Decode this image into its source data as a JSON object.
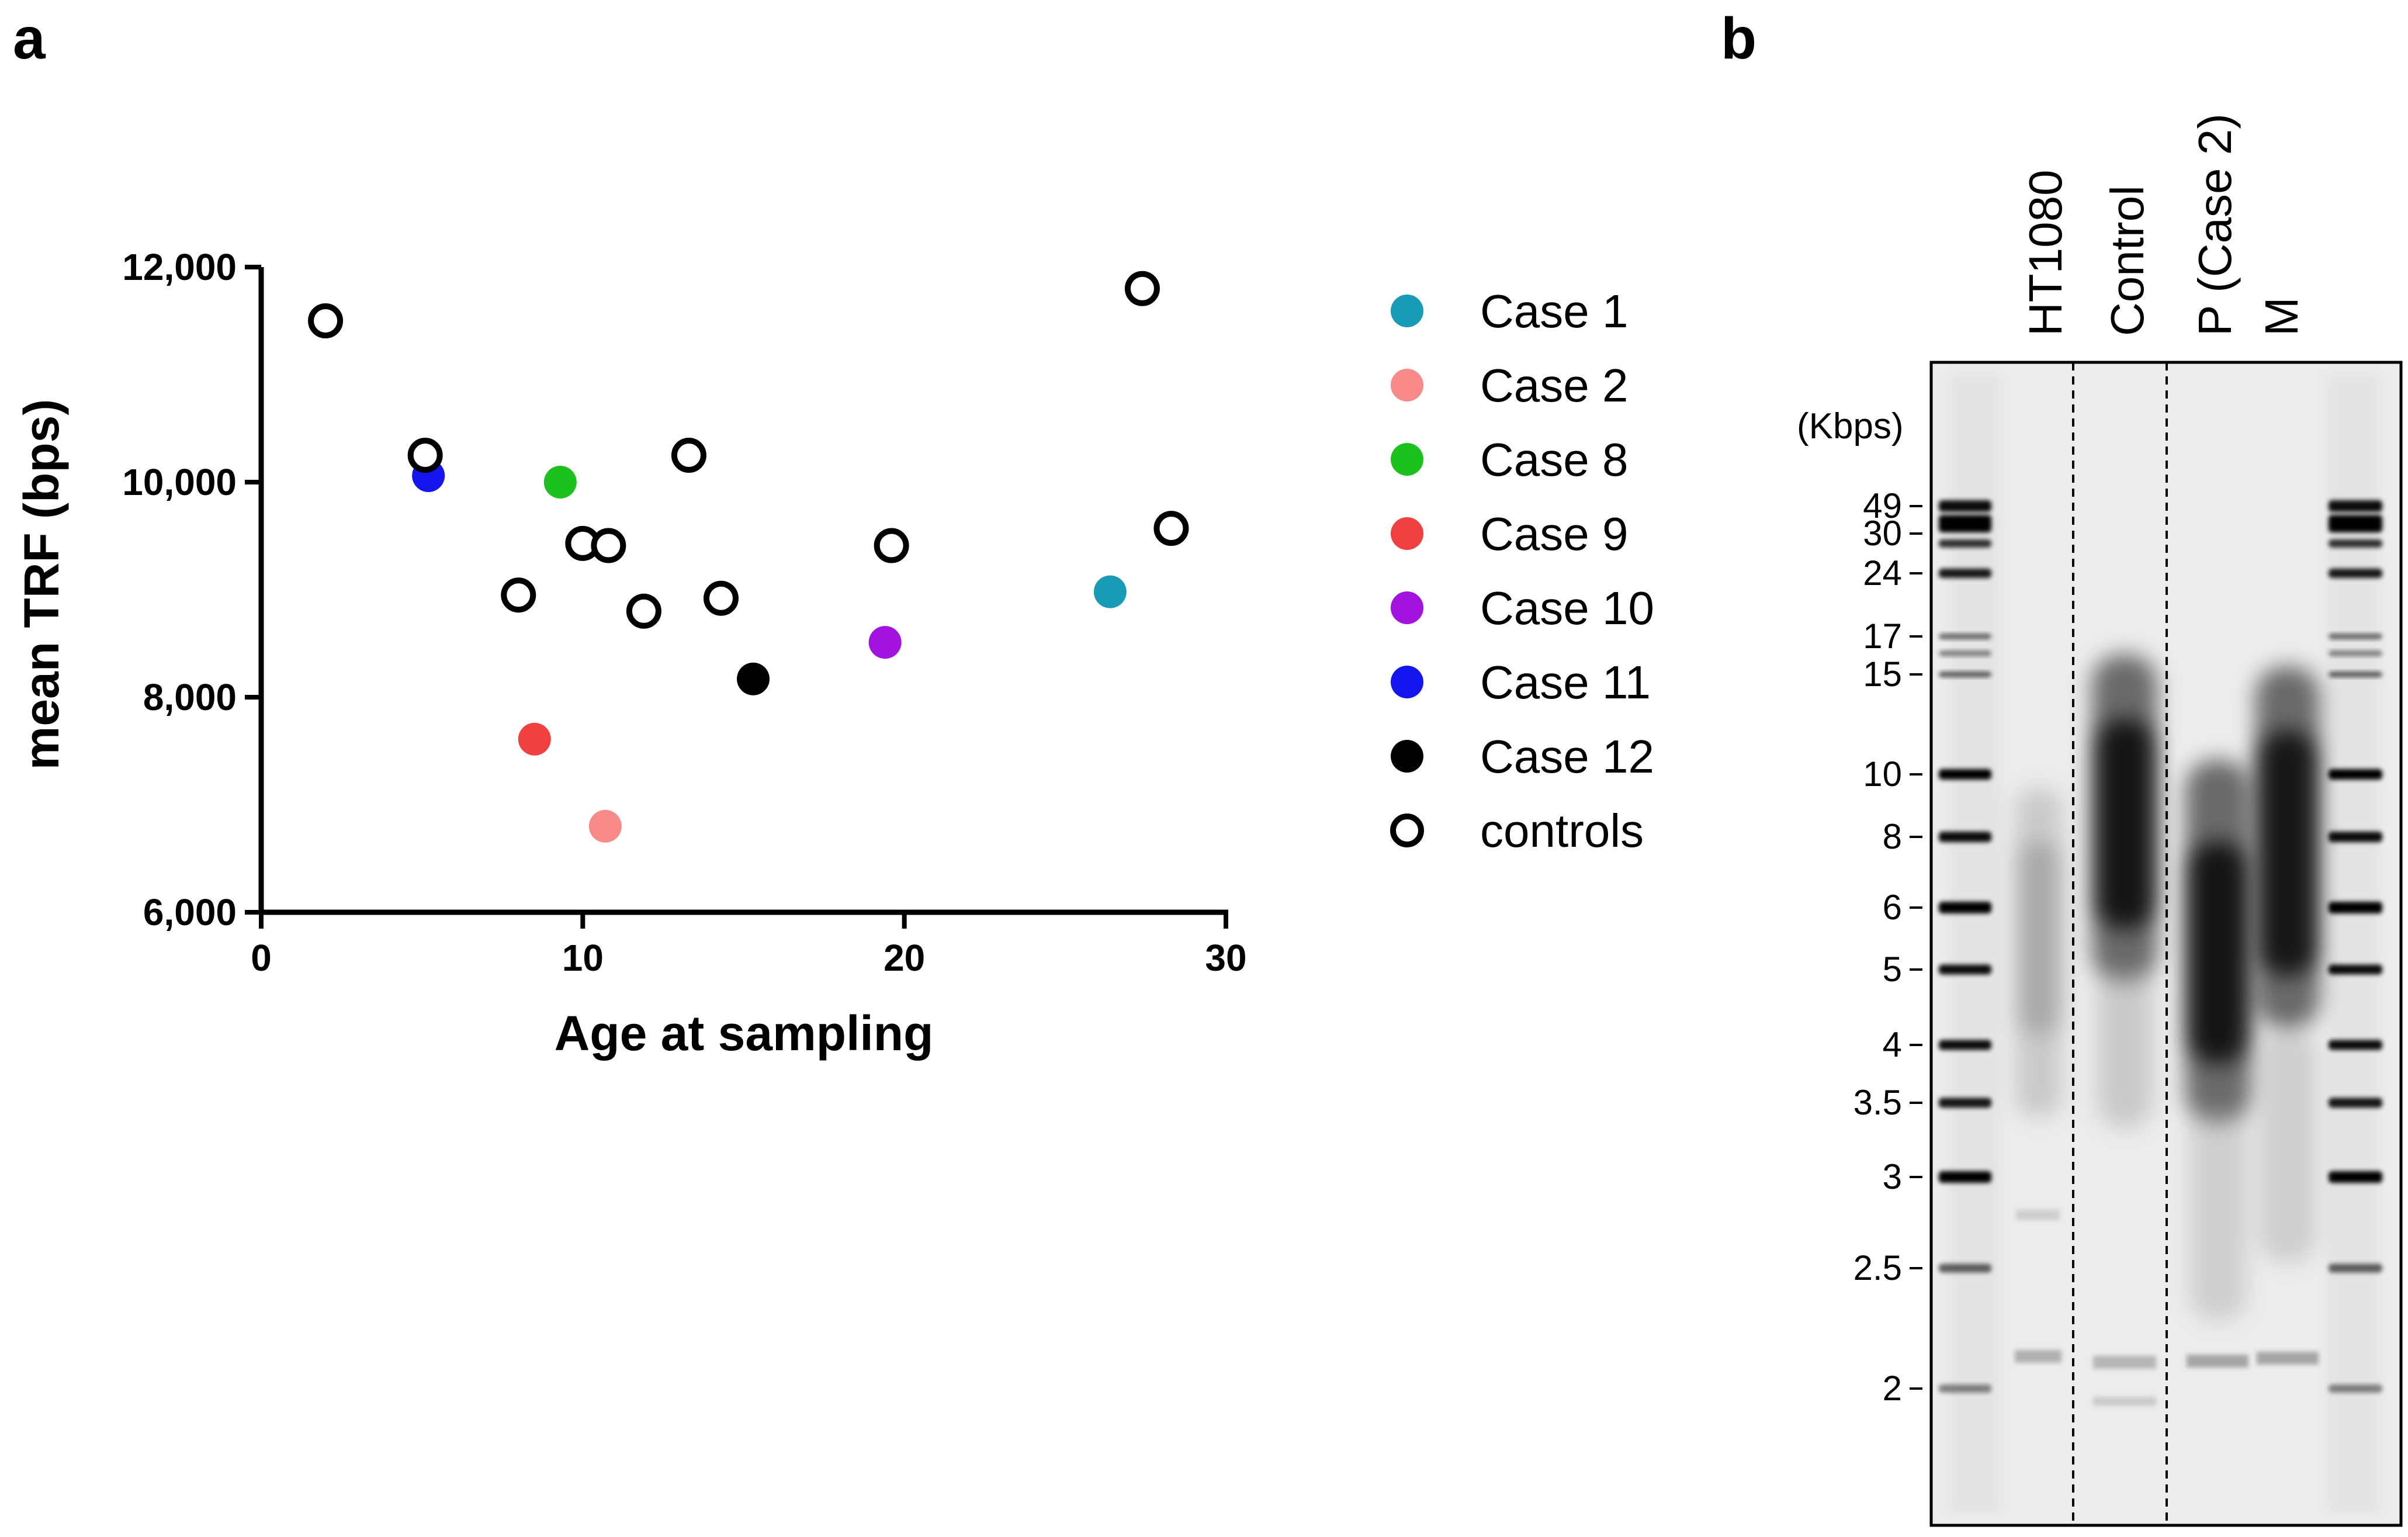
{
  "chart_data": [
    {
      "type": "scatter",
      "panel_label": "a",
      "xlabel": "Age at sampling",
      "ylabel": "mean TRF (bps)",
      "xlim": [
        0,
        30
      ],
      "ylim": [
        6000,
        12000
      ],
      "x_ticks": [
        0,
        10,
        20,
        30
      ],
      "x_tick_labels": [
        "0",
        "10",
        "20",
        "30"
      ],
      "y_ticks": [
        6000,
        8000,
        10000,
        12000
      ],
      "y_tick_labels": [
        "6,000",
        "8,000",
        "10,000",
        "12,000"
      ],
      "legend_position": "right",
      "series": [
        {
          "name": "Case 1",
          "color": "#1A9BB5",
          "marker": "filled",
          "points": [
            [
              26.4,
              8980
            ]
          ]
        },
        {
          "name": "Case 2",
          "color": "#F88A8A",
          "marker": "filled",
          "points": [
            [
              10.7,
              6800
            ]
          ]
        },
        {
          "name": "Case 8",
          "color": "#1DC11D",
          "marker": "filled",
          "points": [
            [
              9.3,
              10000
            ]
          ]
        },
        {
          "name": "Case 9",
          "color": "#F04040",
          "marker": "filled",
          "points": [
            [
              8.5,
              7610
            ]
          ]
        },
        {
          "name": "Case 10",
          "color": "#A313E0",
          "marker": "filled",
          "points": [
            [
              19.4,
              8510
            ]
          ]
        },
        {
          "name": "Case 11",
          "color": "#1515F0",
          "marker": "filled",
          "points": [
            [
              5.2,
              10060
            ]
          ]
        },
        {
          "name": "Case 12",
          "color": "#000000",
          "marker": "filled",
          "points": [
            [
              15.3,
              8170
            ]
          ]
        },
        {
          "name": "controls",
          "color": "#000000",
          "marker": "open",
          "points": [
            [
              2.0,
              11500
            ],
            [
              5.1,
              10250
            ],
            [
              8.0,
              8950
            ],
            [
              10.0,
              9430
            ],
            [
              10.8,
              9410
            ],
            [
              11.9,
              8800
            ],
            [
              13.3,
              10250
            ],
            [
              14.3,
              8920
            ],
            [
              19.6,
              9410
            ],
            [
              27.4,
              11800
            ],
            [
              28.3,
              9570
            ]
          ]
        }
      ]
    },
    {
      "type": "gel",
      "panel_label": "b",
      "unit_label": "(Kbps)",
      "lanes": [
        "HT1080",
        "Control",
        "P (Case 2)",
        "M"
      ],
      "marker_sizes": [
        "49",
        "30",
        "24",
        "17",
        "15",
        "10",
        "8",
        "6",
        "5",
        "4",
        "3.5",
        "3",
        "2.5",
        "2"
      ]
    }
  ]
}
